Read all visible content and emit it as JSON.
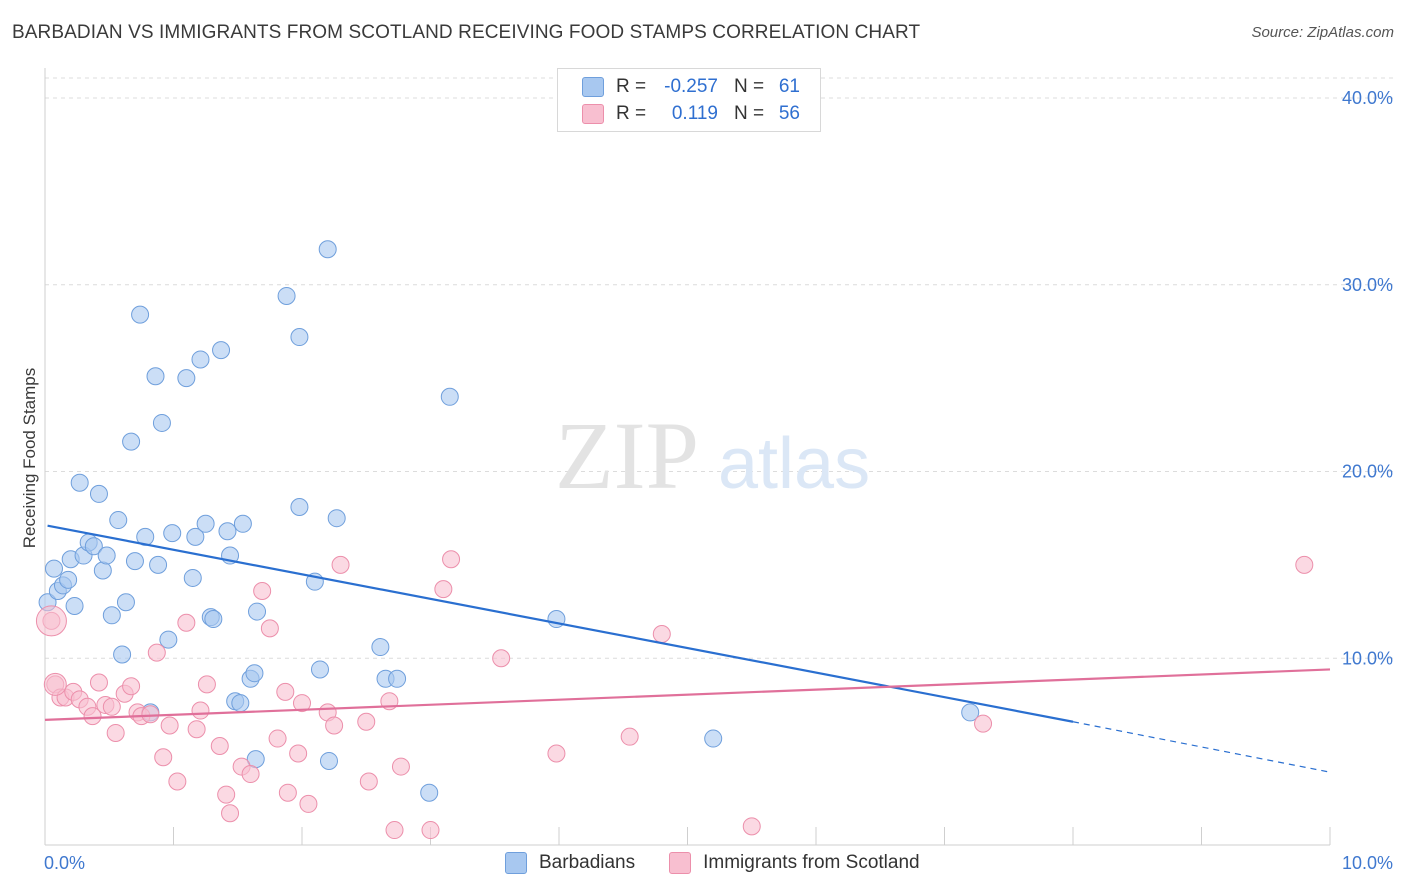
{
  "header": {
    "title": "BARBADIAN VS IMMIGRANTS FROM SCOTLAND RECEIVING FOOD STAMPS CORRELATION CHART",
    "source": "Source: ZipAtlas.com"
  },
  "watermark": {
    "part1": "ZIP",
    "part2": "atlas"
  },
  "legend": {
    "rows": [
      {
        "r_label": "R =",
        "r_value": "-0.257",
        "n_label": "N =",
        "n_value": "61",
        "color": "#a8c8f0",
        "border": "#6f9fdc"
      },
      {
        "r_label": "R =",
        "r_value": "0.119",
        "n_label": "N =",
        "n_value": "56",
        "color": "#f8bfd0",
        "border": "#ec8fab"
      }
    ],
    "bottom": [
      {
        "label": "Barbadians",
        "color": "#a8c8f0",
        "border": "#6f9fdc"
      },
      {
        "label": "Immigrants from Scotland",
        "color": "#f8bfd0",
        "border": "#ec8fab"
      }
    ]
  },
  "chart_data": {
    "type": "scatter",
    "title": "BARBADIAN VS IMMIGRANTS FROM SCOTLAND RECEIVING FOOD STAMPS CORRELATION CHART",
    "xlabel": "",
    "ylabel": "Receiving Food Stamps",
    "xlim": [
      0,
      10
    ],
    "ylim": [
      0,
      40
    ],
    "x_tick_labels": [
      "0.0%",
      "10.0%"
    ],
    "y_ticks": [
      10,
      20,
      30,
      40
    ],
    "y_tick_labels": [
      "10.0%",
      "20.0%",
      "30.0%",
      "40.0%"
    ],
    "grid": true,
    "legend_position": "top-center",
    "series": [
      {
        "name": "Barbadians",
        "color": "#6f9fdc",
        "fill": "#a8c8f0",
        "line_color": "#2a6fd0",
        "trend": {
          "x0": 0.02,
          "y0": 17.1,
          "x1": 8.0,
          "y1": 6.6,
          "dash_to_x": 10.0,
          "dash_to_y": 3.9
        },
        "points": [
          [
            0.02,
            13.0
          ],
          [
            0.07,
            14.8
          ],
          [
            0.1,
            13.6
          ],
          [
            0.14,
            13.9
          ],
          [
            0.18,
            14.2
          ],
          [
            0.2,
            15.3
          ],
          [
            0.23,
            12.8
          ],
          [
            0.27,
            19.4
          ],
          [
            0.3,
            15.5
          ],
          [
            0.34,
            16.2
          ],
          [
            0.38,
            16.0
          ],
          [
            0.42,
            18.8
          ],
          [
            0.45,
            14.7
          ],
          [
            0.48,
            15.5
          ],
          [
            0.52,
            12.3
          ],
          [
            0.57,
            17.4
          ],
          [
            0.6,
            10.2
          ],
          [
            0.63,
            13.0
          ],
          [
            0.67,
            21.6
          ],
          [
            0.7,
            15.2
          ],
          [
            0.74,
            28.4
          ],
          [
            0.78,
            16.5
          ],
          [
            0.82,
            7.1
          ],
          [
            0.86,
            25.1
          ],
          [
            0.88,
            15.0
          ],
          [
            0.91,
            22.6
          ],
          [
            0.96,
            11.0
          ],
          [
            0.99,
            16.7
          ],
          [
            1.1,
            25.0
          ],
          [
            1.15,
            14.3
          ],
          [
            1.17,
            16.5
          ],
          [
            1.21,
            26.0
          ],
          [
            1.25,
            17.2
          ],
          [
            1.29,
            12.2
          ],
          [
            1.31,
            12.1
          ],
          [
            1.37,
            26.5
          ],
          [
            1.42,
            16.8
          ],
          [
            1.44,
            15.5
          ],
          [
            1.48,
            7.7
          ],
          [
            1.52,
            7.6
          ],
          [
            1.54,
            17.2
          ],
          [
            1.6,
            8.9
          ],
          [
            1.63,
            9.2
          ],
          [
            1.64,
            4.6
          ],
          [
            1.65,
            12.5
          ],
          [
            1.88,
            29.4
          ],
          [
            1.98,
            27.2
          ],
          [
            1.98,
            18.1
          ],
          [
            2.1,
            14.1
          ],
          [
            2.14,
            9.4
          ],
          [
            2.2,
            31.9
          ],
          [
            2.21,
            4.5
          ],
          [
            2.27,
            17.5
          ],
          [
            2.61,
            10.6
          ],
          [
            2.65,
            8.9
          ],
          [
            2.74,
            8.9
          ],
          [
            2.99,
            2.8
          ],
          [
            3.15,
            24.0
          ],
          [
            3.98,
            12.1
          ],
          [
            5.2,
            5.7
          ],
          [
            7.2,
            7.1
          ]
        ]
      },
      {
        "name": "Immigrants from Scotland",
        "color": "#ec8fab",
        "fill": "#f8bfd0",
        "line_color": "#e0709a",
        "trend": {
          "x0": 0.0,
          "y0": 6.7,
          "x1": 10.0,
          "y1": 9.4
        },
        "points": [
          [
            0.05,
            12.0
          ],
          [
            0.08,
            8.6
          ],
          [
            0.12,
            7.9
          ],
          [
            0.16,
            7.9
          ],
          [
            0.22,
            8.2
          ],
          [
            0.27,
            7.8
          ],
          [
            0.33,
            7.4
          ],
          [
            0.37,
            6.9
          ],
          [
            0.42,
            8.7
          ],
          [
            0.47,
            7.5
          ],
          [
            0.52,
            7.4
          ],
          [
            0.55,
            6.0
          ],
          [
            0.62,
            8.1
          ],
          [
            0.67,
            8.5
          ],
          [
            0.72,
            7.1
          ],
          [
            0.75,
            6.9
          ],
          [
            0.82,
            7.0
          ],
          [
            0.87,
            10.3
          ],
          [
            0.92,
            4.7
          ],
          [
            0.97,
            6.4
          ],
          [
            1.03,
            3.4
          ],
          [
            1.1,
            11.9
          ],
          [
            1.18,
            6.2
          ],
          [
            1.21,
            7.2
          ],
          [
            1.26,
            8.6
          ],
          [
            1.36,
            5.3
          ],
          [
            1.41,
            2.7
          ],
          [
            1.44,
            1.7
          ],
          [
            1.53,
            4.2
          ],
          [
            1.6,
            3.8
          ],
          [
            1.69,
            13.6
          ],
          [
            1.75,
            11.6
          ],
          [
            1.81,
            5.7
          ],
          [
            1.87,
            8.2
          ],
          [
            1.89,
            2.8
          ],
          [
            1.97,
            4.9
          ],
          [
            2.0,
            7.6
          ],
          [
            2.05,
            2.2
          ],
          [
            2.2,
            7.1
          ],
          [
            2.25,
            6.4
          ],
          [
            2.3,
            15.0
          ],
          [
            2.5,
            6.6
          ],
          [
            2.52,
            3.4
          ],
          [
            2.68,
            7.7
          ],
          [
            2.72,
            0.8
          ],
          [
            2.77,
            4.2
          ],
          [
            3.0,
            0.8
          ],
          [
            3.1,
            13.7
          ],
          [
            3.16,
            15.3
          ],
          [
            3.55,
            10.0
          ],
          [
            3.98,
            4.9
          ],
          [
            4.55,
            5.8
          ],
          [
            4.8,
            11.3
          ],
          [
            5.5,
            1.0
          ],
          [
            7.3,
            6.5
          ],
          [
            9.8,
            15.0
          ]
        ]
      }
    ]
  }
}
